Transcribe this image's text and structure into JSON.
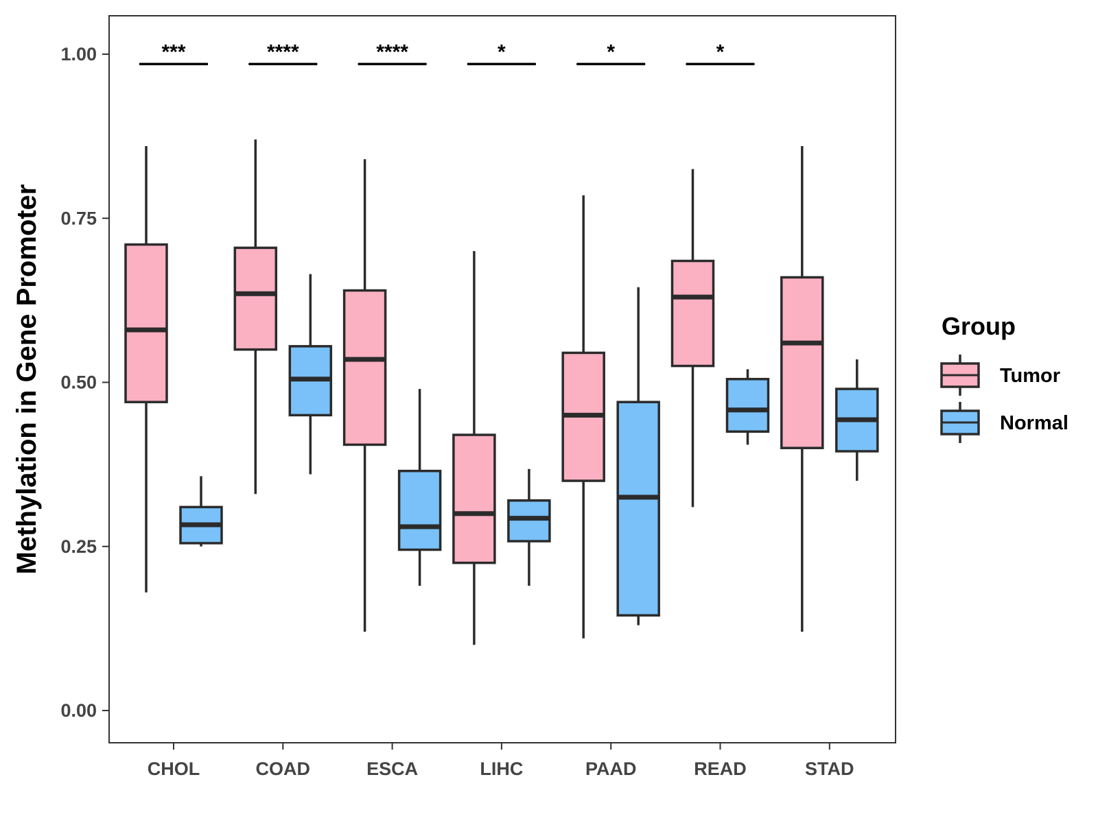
{
  "chart_data": {
    "type": "boxplot",
    "title": "",
    "xlabel": "",
    "ylabel": "Methylation in Gene Promoter",
    "ylim": [
      -0.05,
      1.06
    ],
    "yticks": [
      0.0,
      0.25,
      0.5,
      0.75,
      1.0
    ],
    "ytick_labels": [
      "0.00",
      "0.25",
      "0.50",
      "0.75",
      "1.00"
    ],
    "categories": [
      "CHOL",
      "COAD",
      "ESCA",
      "LIHC",
      "PAAD",
      "READ",
      "STAD"
    ],
    "legend": {
      "title": "Group",
      "position": "right",
      "entries": [
        {
          "name": "Tumor",
          "color": "#FBB1C2"
        },
        {
          "name": "Normal",
          "color": "#79C1F8"
        }
      ]
    },
    "series": [
      {
        "name": "Tumor",
        "color": "#FBB1C2",
        "boxes": [
          {
            "min": 0.18,
            "q1": 0.47,
            "median": 0.58,
            "q3": 0.71,
            "max": 0.86
          },
          {
            "min": 0.33,
            "q1": 0.55,
            "median": 0.635,
            "q3": 0.705,
            "max": 0.87
          },
          {
            "min": 0.12,
            "q1": 0.405,
            "median": 0.535,
            "q3": 0.64,
            "max": 0.84
          },
          {
            "min": 0.1,
            "q1": 0.225,
            "median": 0.3,
            "q3": 0.42,
            "max": 0.7
          },
          {
            "min": 0.11,
            "q1": 0.35,
            "median": 0.45,
            "q3": 0.545,
            "max": 0.785
          },
          {
            "min": 0.31,
            "q1": 0.525,
            "median": 0.63,
            "q3": 0.685,
            "max": 0.825
          },
          {
            "min": 0.12,
            "q1": 0.4,
            "median": 0.56,
            "q3": 0.66,
            "max": 0.86
          }
        ]
      },
      {
        "name": "Normal",
        "color": "#79C1F8",
        "boxes": [
          {
            "min": 0.25,
            "q1": 0.255,
            "median": 0.283,
            "q3": 0.31,
            "max": 0.357
          },
          {
            "min": 0.36,
            "q1": 0.45,
            "median": 0.505,
            "q3": 0.555,
            "max": 0.665
          },
          {
            "min": 0.19,
            "q1": 0.245,
            "median": 0.28,
            "q3": 0.365,
            "max": 0.49
          },
          {
            "min": 0.19,
            "q1": 0.258,
            "median": 0.293,
            "q3": 0.32,
            "max": 0.368
          },
          {
            "min": 0.13,
            "q1": 0.145,
            "median": 0.325,
            "q3": 0.47,
            "max": 0.645
          },
          {
            "min": 0.405,
            "q1": 0.425,
            "median": 0.458,
            "q3": 0.505,
            "max": 0.52
          },
          {
            "min": 0.35,
            "q1": 0.395,
            "median": 0.443,
            "q3": 0.49,
            "max": 0.535
          }
        ]
      }
    ],
    "significance": [
      {
        "category": "CHOL",
        "label": "***",
        "y": 0.985
      },
      {
        "category": "COAD",
        "label": "****",
        "y": 0.985
      },
      {
        "category": "ESCA",
        "label": "****",
        "y": 0.985
      },
      {
        "category": "LIHC",
        "label": "*",
        "y": 0.985
      },
      {
        "category": "PAAD",
        "label": "*",
        "y": 0.985
      },
      {
        "category": "READ",
        "label": "*",
        "y": 0.985
      }
    ],
    "grid": false
  }
}
